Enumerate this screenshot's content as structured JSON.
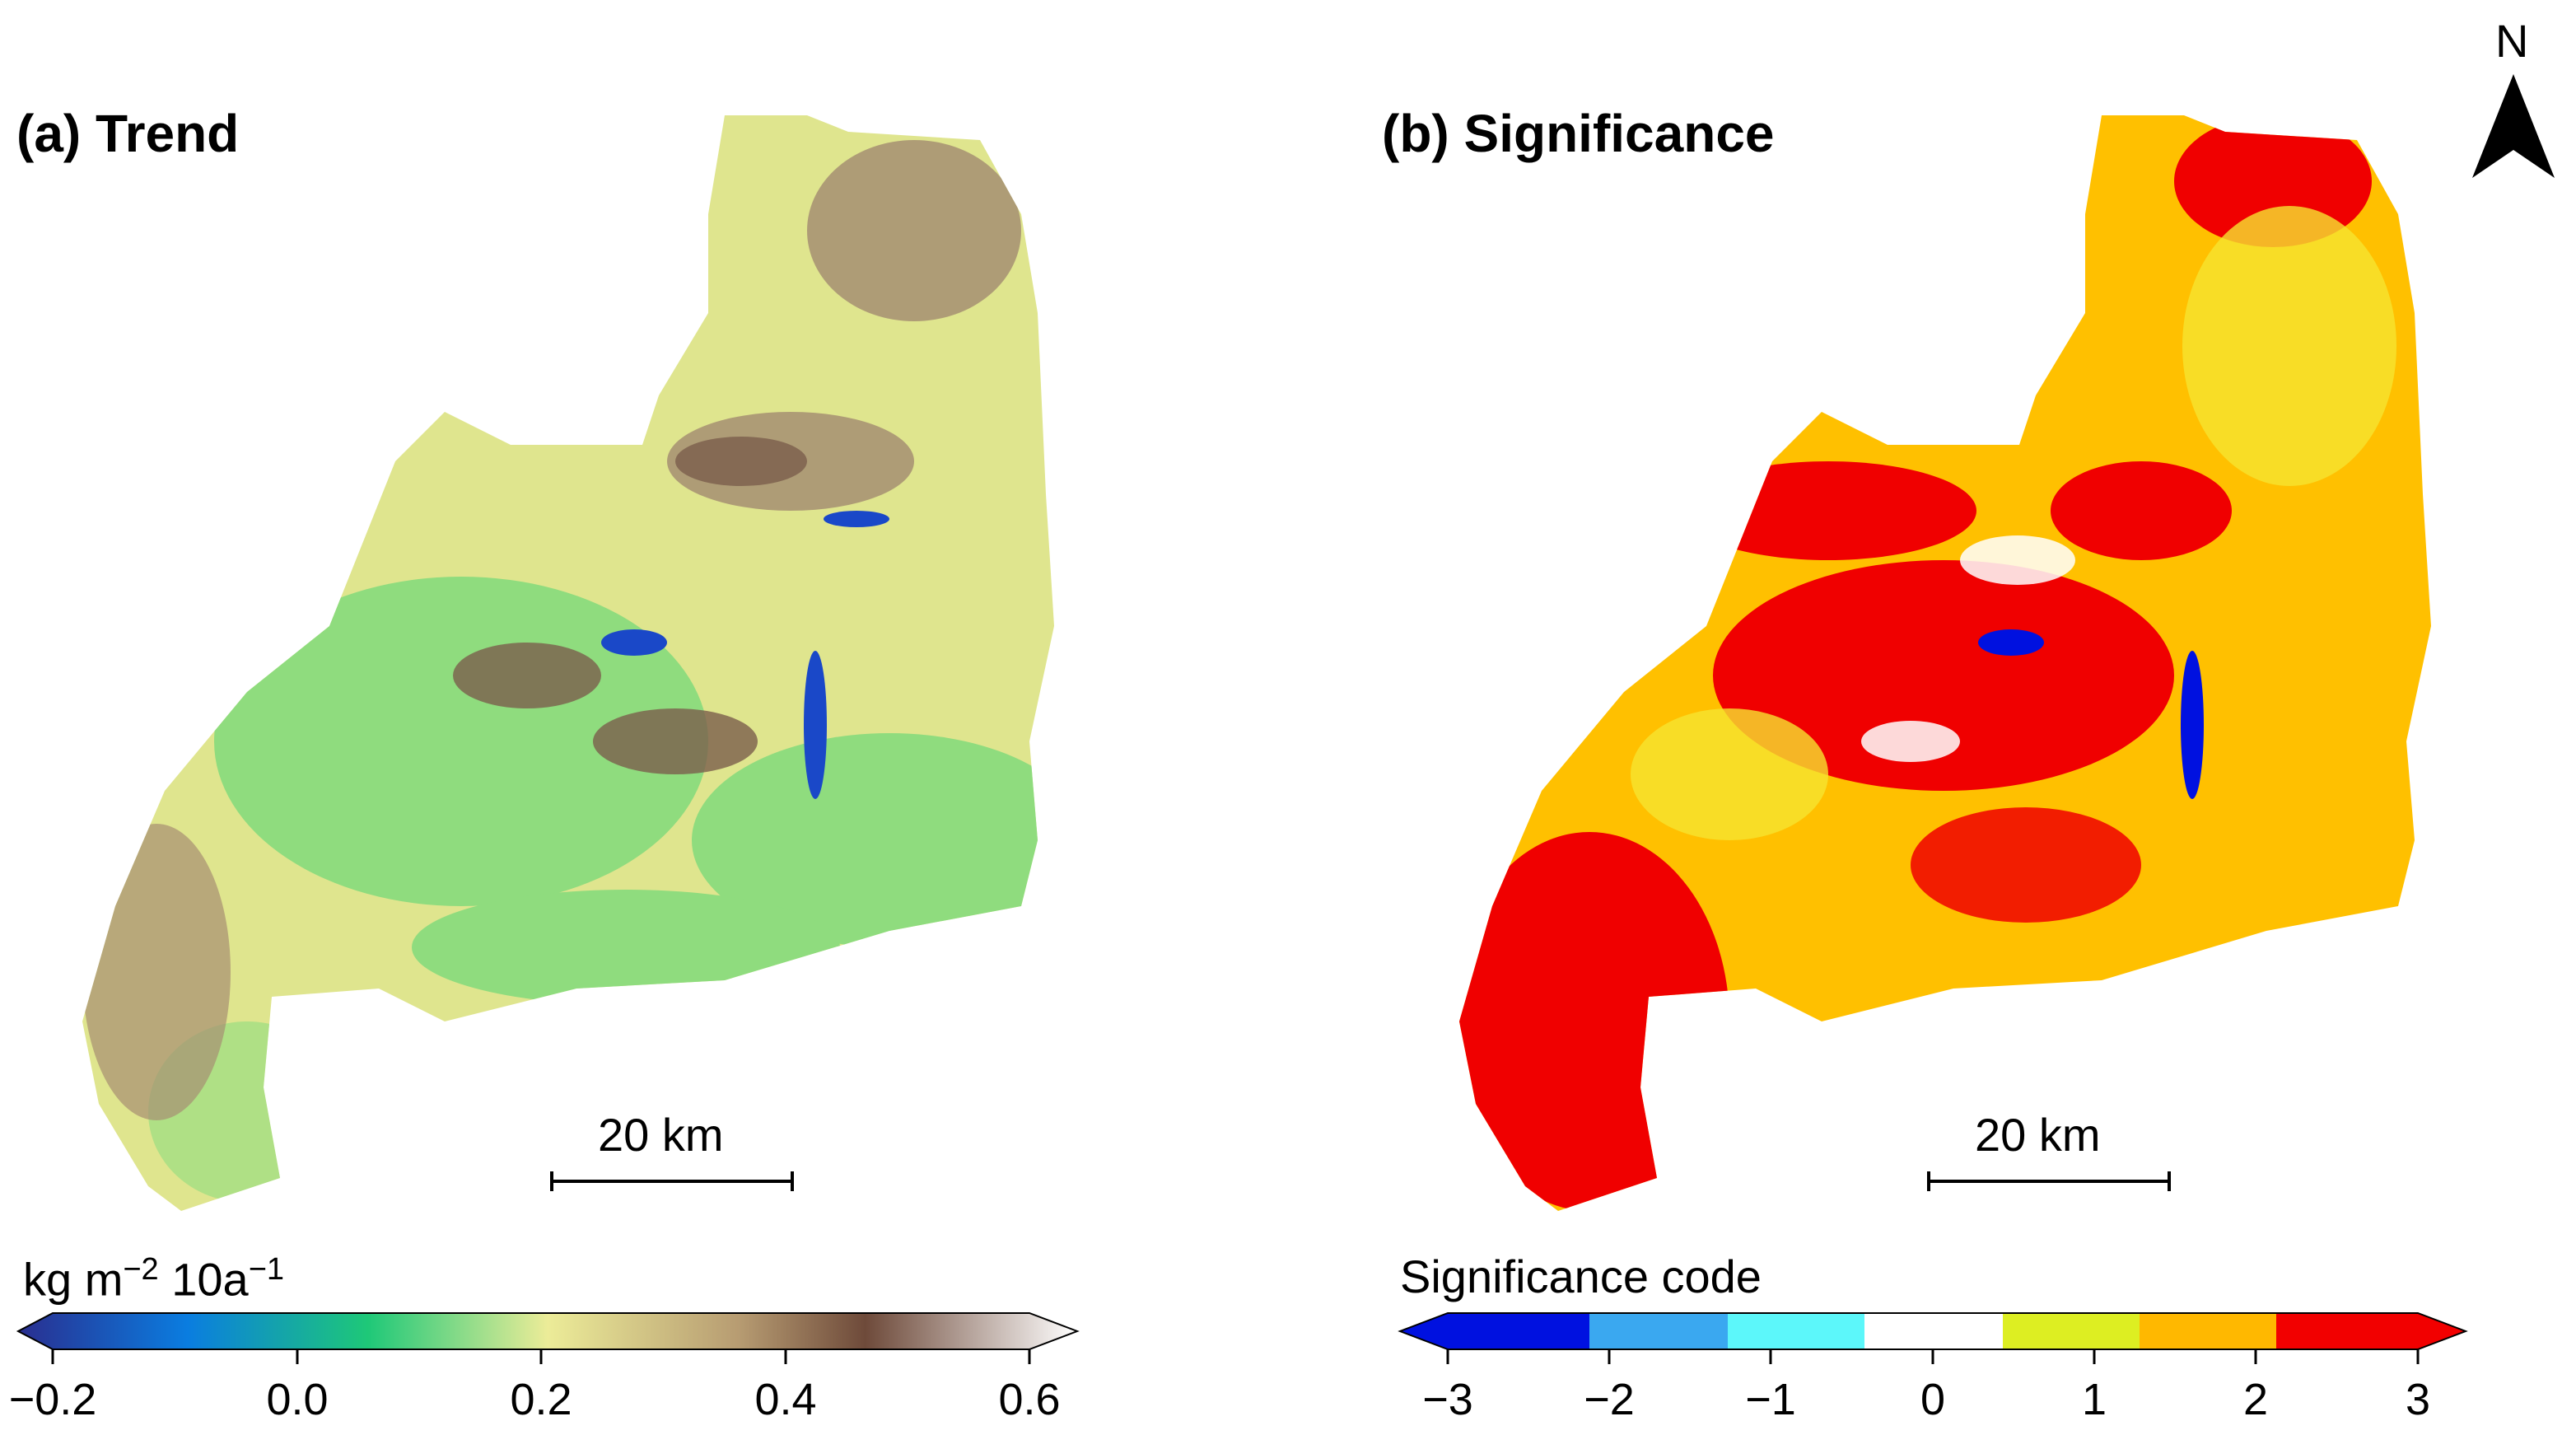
{
  "panels": {
    "a": {
      "title": "(a) Trend"
    },
    "b": {
      "title": "(b) Significance"
    }
  },
  "scale_bar": {
    "label": "20 km"
  },
  "north_arrow": {
    "label": "N",
    "icon": "north-arrow-icon"
  },
  "colorbar_trend": {
    "title_prefix": "kg m",
    "exp1": "−2",
    "mid": " 10a",
    "exp2": "−1",
    "ticks": [
      "−0.2",
      "0.0",
      "0.2",
      "0.4",
      "0.6"
    ],
    "colors": [
      "#2a2e8f",
      "#0a7de0",
      "#1ec878",
      "#ecec98",
      "#b79c72",
      "#6e4a3a",
      "#ffffff"
    ]
  },
  "colorbar_significance": {
    "title": "Significance code",
    "ticks": [
      "−3",
      "−2",
      "−1",
      "0",
      "1",
      "2",
      "3"
    ],
    "colors": [
      "#0011e0",
      "#3aa8f0",
      "#5cf7fa",
      "#ffffff",
      "#ddee22",
      "#ffb800",
      "#f20000"
    ]
  },
  "map_colors": {
    "trend_base": "#dfe58e",
    "trend_green": "#8fdc7e",
    "trend_brown": "#a68f72",
    "trend_darkbrown": "#7a5e4c",
    "water": "#1a48c8",
    "sig_red": "#f00000",
    "sig_orange": "#ffc000",
    "sig_yellow": "#f6e430"
  }
}
